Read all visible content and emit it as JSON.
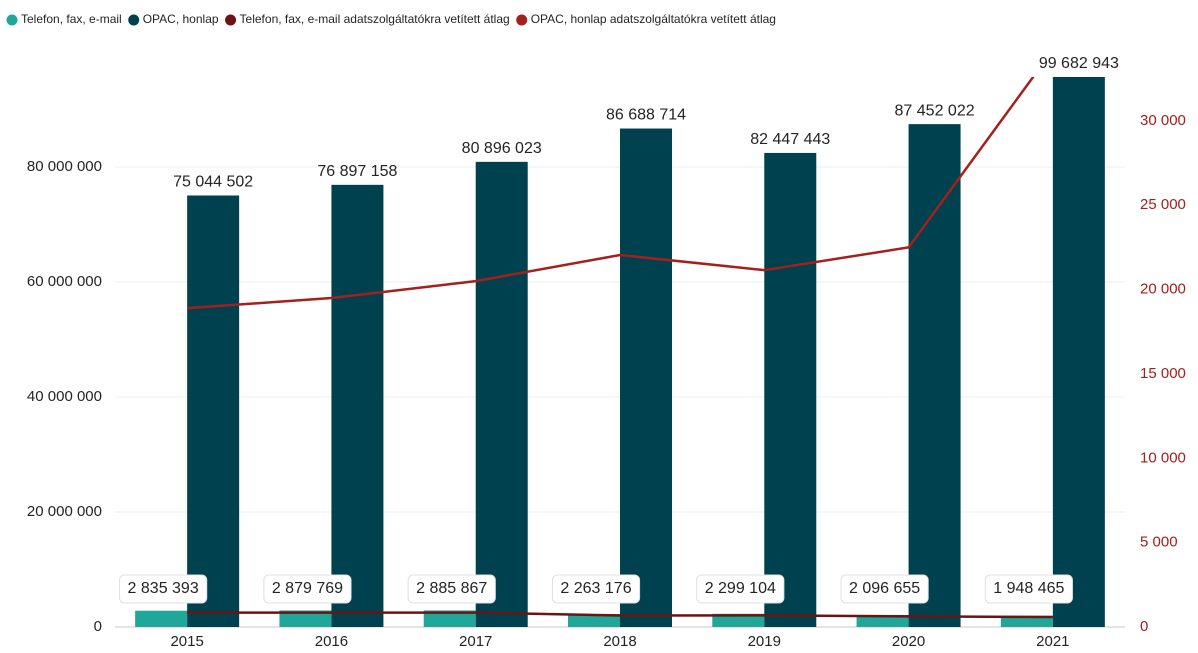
{
  "chart_data": {
    "type": "bar_line",
    "categories": [
      "2015",
      "2016",
      "2017",
      "2018",
      "2019",
      "2020",
      "2021"
    ],
    "series": [
      {
        "name": "Telefon, fax, e-mail",
        "color": "#1fa89a",
        "type": "bar",
        "values": [
          2835393,
          2879769,
          2885867,
          2263176,
          2299104,
          2096655,
          1948465
        ],
        "value_labels": [
          "2 835 393",
          "2 879 769",
          "2 885 867",
          "2 263 176",
          "2 299 104",
          "2 096 655",
          "1 948 465"
        ]
      },
      {
        "name": "OPAC, honlap",
        "color": "#00414f",
        "type": "bar",
        "values": [
          75044502,
          76897158,
          80896023,
          86688714,
          82447443,
          87452022,
          99682943
        ],
        "value_labels": [
          "75 044 502",
          "76 897 158",
          "80 896 023",
          "86 688 714",
          "82 447 443",
          "87 452 022",
          "99 682 943"
        ]
      },
      {
        "name": "Telefon, fax, e-mail adatszolgáltatókra vetített átlag",
        "color": "#6b1414",
        "type": "line",
        "axis": "y2",
        "values": [
          850,
          850,
          850,
          680,
          690,
          630,
          590
        ]
      },
      {
        "name": "OPAC, honlap adatszolgáltatókra vetített átlag",
        "color": "#a3201c",
        "type": "line",
        "axis": "y2",
        "values": [
          18900,
          19500,
          20500,
          22050,
          21150,
          22500,
          34200
        ]
      }
    ],
    "ylim": [
      0,
      95650000
    ],
    "yticks": [
      0,
      {
        "value": 20000000,
        "label": "20 000 000"
      },
      {
        "value": 40000000,
        "label": "40 000 000"
      },
      {
        "value": 60000000,
        "label": "60 000 000"
      },
      {
        "value": 80000000,
        "label": "80 000 000"
      }
    ],
    "y2lim": [
      0,
      32600
    ],
    "y2ticks": [
      0,
      {
        "value": 5000,
        "label": "5 000"
      },
      {
        "value": 10000,
        "label": "10 000"
      },
      {
        "value": 15000,
        "label": "15 000"
      },
      {
        "value": 20000,
        "label": "20 000"
      },
      {
        "value": 25000,
        "label": "25 000"
      },
      {
        "value": 30000,
        "label": "30 000"
      }
    ],
    "y2_color": "#a3201c",
    "grid": true
  }
}
